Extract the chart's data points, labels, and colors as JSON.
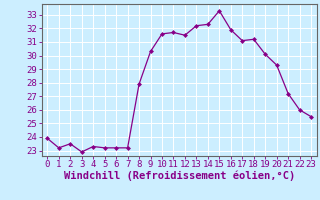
{
  "x": [
    0,
    1,
    2,
    3,
    4,
    5,
    6,
    7,
    8,
    9,
    10,
    11,
    12,
    13,
    14,
    15,
    16,
    17,
    18,
    19,
    20,
    21,
    22,
    23
  ],
  "y": [
    23.9,
    23.2,
    23.5,
    22.9,
    23.3,
    23.2,
    23.2,
    23.2,
    27.9,
    30.3,
    31.6,
    31.7,
    31.5,
    32.2,
    32.3,
    33.3,
    31.9,
    31.1,
    31.2,
    30.1,
    29.3,
    27.2,
    26.0,
    25.5
  ],
  "line_color": "#aa00aa",
  "marker": "D",
  "marker_size": 2,
  "xlabel": "Windchill (Refroidissement éolien,°C)",
  "ylabel_ticks": [
    23,
    24,
    25,
    26,
    27,
    28,
    29,
    30,
    31,
    32,
    33
  ],
  "ylim": [
    22.6,
    33.8
  ],
  "xlim": [
    -0.5,
    23.5
  ],
  "bg_color": "#cceeff",
  "grid_color": "#aadddd",
  "tick_color": "#880088",
  "line_color2": "#880088",
  "tick_fontsize": 6.5,
  "xlabel_fontsize": 7.5
}
